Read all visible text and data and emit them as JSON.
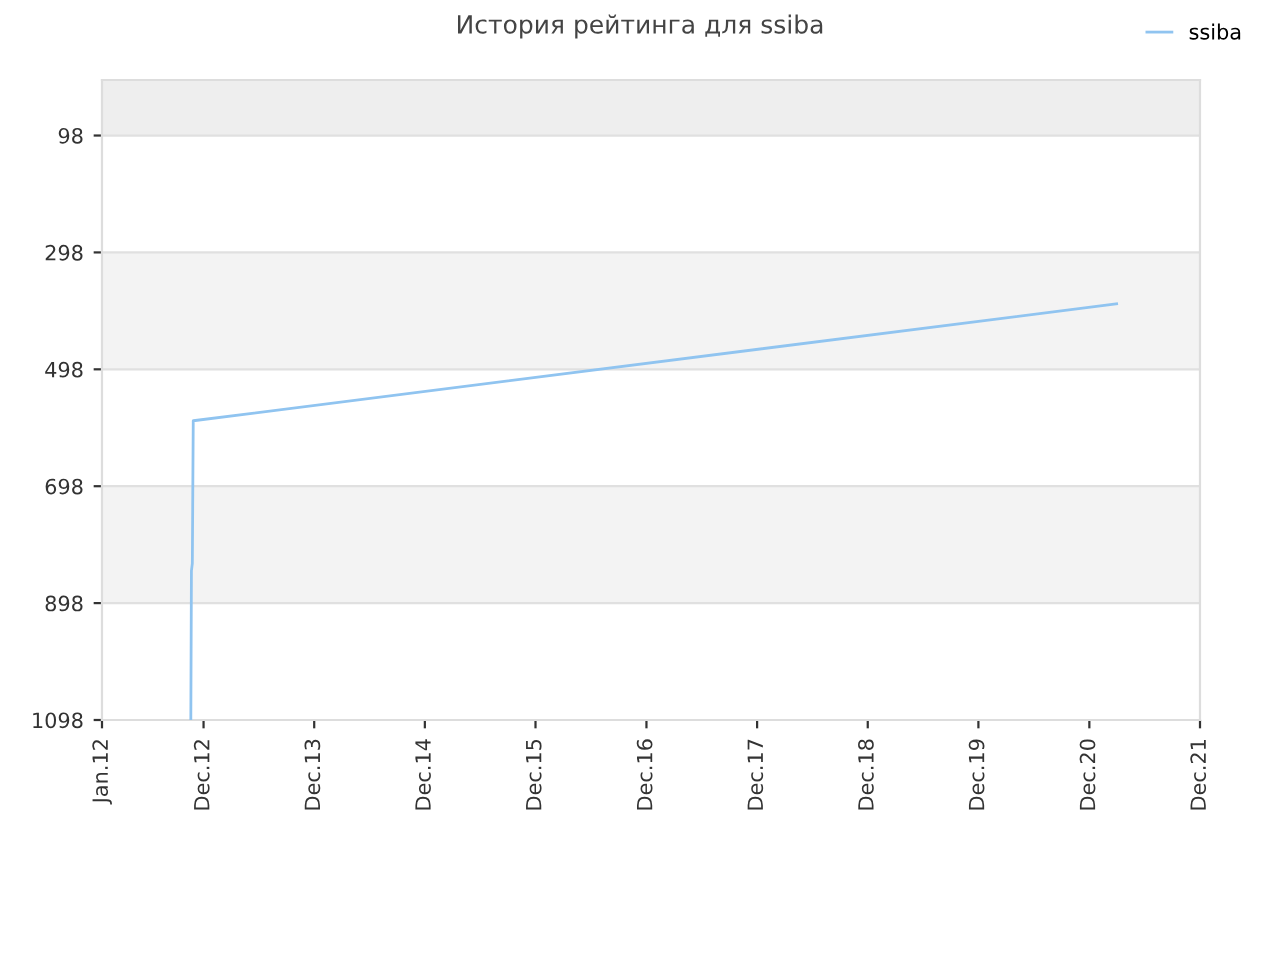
{
  "chart_data": {
    "type": "line",
    "title": "История рейтинга для ssiba",
    "x": [
      "2012-10-20",
      "2012-10-22",
      "2012-10-25",
      "2012-10-28",
      "2021-03-01"
    ],
    "series": [
      {
        "name": "ssiba",
        "color": "#90c4f0",
        "values": [
          1098,
          843,
          830,
          586,
          386
        ]
      }
    ],
    "ylim": [
      1098,
      3
    ],
    "yticks": [
      98,
      298,
      498,
      698,
      898,
      1098
    ],
    "xlim": [
      "2012-01-01",
      "2021-12-01"
    ],
    "xticks": [
      {
        "value": "2012-01-01",
        "label": "Jan.12"
      },
      {
        "value": "2012-12-01",
        "label": "Dec.12"
      },
      {
        "value": "2013-12-01",
        "label": "Dec.13"
      },
      {
        "value": "2014-12-01",
        "label": "Dec.14"
      },
      {
        "value": "2015-12-01",
        "label": "Dec.15"
      },
      {
        "value": "2016-12-01",
        "label": "Dec.16"
      },
      {
        "value": "2017-12-01",
        "label": "Dec.17"
      },
      {
        "value": "2018-12-01",
        "label": "Dec.18"
      },
      {
        "value": "2019-12-01",
        "label": "Dec.19"
      },
      {
        "value": "2020-12-01",
        "label": "Dec.20"
      },
      {
        "value": "2021-12-01",
        "label": "Dec.21"
      }
    ],
    "bands": [
      {
        "axis": "y",
        "from": 3,
        "to": 98,
        "color": "#eeeeee"
      },
      {
        "axis": "y",
        "from": 298,
        "to": 498,
        "color": "#f3f3f3"
      },
      {
        "axis": "y",
        "from": 698,
        "to": 898,
        "color": "#f3f3f3"
      }
    ],
    "grid": "y",
    "legend": "top right",
    "marker": "none",
    "line_style": "solid"
  }
}
